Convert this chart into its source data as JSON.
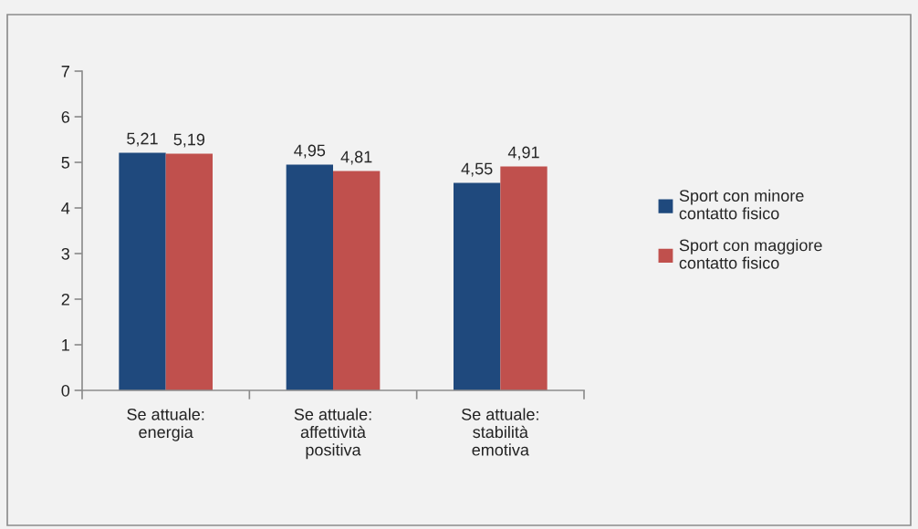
{
  "chart_data": {
    "type": "bar",
    "categories": [
      "Se attuale: energia",
      "Se attuale: affettività positiva",
      "Se attuale: stabilità emotiva"
    ],
    "series": [
      {
        "name": "Sport con minore contatto fisico",
        "color": "#1f497d",
        "values": [
          5.21,
          4.95,
          4.55
        ],
        "value_labels": [
          "5,21",
          "4,95",
          "4,55"
        ]
      },
      {
        "name": "Sport con maggiore contatto fisico",
        "color": "#c0504d",
        "values": [
          5.19,
          4.81,
          4.91
        ],
        "value_labels": [
          "5,19",
          "4,81",
          "4,91"
        ]
      }
    ],
    "ylim": [
      0,
      7
    ],
    "yticks": [
      0,
      1,
      2,
      3,
      4,
      5,
      6,
      7
    ],
    "grid": false,
    "legend": "right"
  }
}
